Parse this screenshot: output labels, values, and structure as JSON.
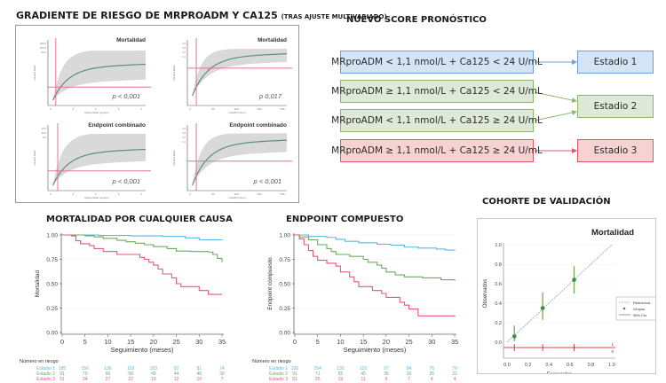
{
  "gradient": {
    "title": "GRADIENTE DE RIESGO DE MRPROADM Y CA125",
    "subtitle": "(TRAS AJUSTE MULTIVARIADO)",
    "panels": [
      {
        "title": "Mortalidad",
        "p": "p < 0,001",
        "ylabel": "Hazard Ratio",
        "xlabel": "MRproADM (nmol/L)",
        "yticks": [
          "150.0",
          "100.0",
          "50.0"
        ],
        "xticks": [
          "0",
          "1",
          "2",
          "3",
          "4"
        ]
      },
      {
        "title": "Mortalidad",
        "p": "p  0,017",
        "ylabel": "Hazard Ratio",
        "xlabel": "CA125 (U/mL)",
        "yticks": [
          "4.0",
          "3.0",
          "2.0",
          "1.0"
        ],
        "xticks": [
          "0",
          "50",
          "100",
          "150",
          "200"
        ]
      },
      {
        "title": "Endpoint combinado",
        "p": "p < 0,001",
        "ylabel": "Hazard Ratio",
        "xlabel": "MRproADM (nmol/L)",
        "yticks": [
          "15.0",
          "10.0",
          "5.0"
        ],
        "xticks": [
          "0",
          "1",
          "2",
          "3",
          "4"
        ]
      },
      {
        "title": "Endpoint combinado",
        "p": "p < 0,001",
        "ylabel": "Hazard Ratio",
        "xlabel": "CA125 (U/mL)",
        "yticks": [
          "4.0",
          "3.0",
          "2.0",
          "1.0"
        ],
        "xticks": [
          "0",
          "50",
          "100",
          "150",
          "200"
        ]
      }
    ]
  },
  "score": {
    "title": "NUEVO SCORE PRONÓSTICO",
    "conditions": [
      {
        "label": "MRproADM < 1,1 nmol/L + Ca125 < 24 U/mL",
        "stage": 0
      },
      {
        "label": "MRproADM ≥ 1,1 nmol/L + Ca125 < 24 U/mL",
        "stage": 1
      },
      {
        "label": "MRproADM < 1,1 nmol/L + Ca125 ≥ 24 U/mL",
        "stage": 1
      },
      {
        "label": "MRproADM ≥ 1,1 nmol/L + Ca125 ≥ 24 U/mL",
        "stage": 2
      }
    ],
    "stages": [
      "Estadio 1",
      "Estadio 2",
      "Estadio 3"
    ],
    "colors": {
      "blue": "#6ea0d6",
      "green": "#8cb66e",
      "red": "#dd5c64"
    }
  },
  "km_mortality": {
    "title": "MORTALIDAD POR CUALQUIER CAUSA",
    "ylabel": "Mortalidad",
    "xlabel": "Seguimiento (meses)",
    "risk_label": "Número en riesgo",
    "groups": [
      "Estadio 1",
      "Estadio 2",
      "Estadio 3"
    ],
    "at_risk": [
      [
        "195",
        "156",
        "136",
        "118",
        "103",
        "92",
        "81",
        "74"
      ],
      [
        "91",
        "79",
        "66",
        "58",
        "49",
        "44",
        "40",
        "30"
      ],
      [
        "51",
        "34",
        "27",
        "22",
        "19",
        "12",
        "10",
        "7"
      ]
    ]
  },
  "km_endpoint": {
    "title": "ENDPOINT COMPUESTO",
    "ylabel": "Endpoint compuesto",
    "xlabel": "Seguimiento (meses)",
    "risk_label": "Número en riesgo",
    "groups": [
      "Estadio 1",
      "Estadio 2",
      "Estadio 3"
    ],
    "at_risk": [
      [
        "195",
        "154",
        "130",
        "110",
        "97",
        "84",
        "76",
        "70"
      ],
      [
        "91",
        "71",
        "55",
        "45",
        "36",
        "30",
        "26",
        "22"
      ],
      [
        "51",
        "26",
        "19",
        "11",
        "9",
        "7",
        "4",
        "4"
      ]
    ]
  },
  "validation": {
    "title": "COHORTE DE VALIDACIÓN",
    "plot_title": "Mortalidad",
    "xlabel": "Esperados",
    "ylabel": "Observados",
    "legend": [
      "Referencia",
      "Grupos",
      "95% CIs"
    ],
    "rug_labels": [
      "1",
      "0"
    ]
  },
  "chart_data": [
    {
      "type": "line",
      "title": "MORTALIDAD POR CUALQUIER CAUSA",
      "xlabel": "Seguimiento (meses)",
      "ylabel": "Mortalidad",
      "xlim": [
        0,
        35
      ],
      "ylim": [
        0,
        1
      ],
      "xticks": [
        "0",
        "5",
        "10",
        "15",
        "20",
        "25",
        "30",
        "35"
      ],
      "yticks": [
        "0.00",
        "0.25",
        "0.50",
        "0.75",
        "1.00"
      ],
      "series": [
        {
          "name": "Estadio 1",
          "color": "#5bb8e0",
          "points": [
            [
              0,
              1.0
            ],
            [
              8,
              0.995
            ],
            [
              15,
              0.99
            ],
            [
              22,
              0.985
            ],
            [
              27,
              0.97
            ],
            [
              30,
              0.95
            ],
            [
              35,
              0.945
            ]
          ]
        },
        {
          "name": "Estadio 2",
          "color": "#6aad5a",
          "points": [
            [
              0,
              1.0
            ],
            [
              5,
              0.99
            ],
            [
              7,
              0.98
            ],
            [
              9,
              0.965
            ],
            [
              12,
              0.945
            ],
            [
              14,
              0.93
            ],
            [
              16,
              0.915
            ],
            [
              18,
              0.9
            ],
            [
              20,
              0.88
            ],
            [
              23,
              0.86
            ],
            [
              25,
              0.835
            ],
            [
              28,
              0.83
            ],
            [
              32,
              0.825
            ],
            [
              33,
              0.8
            ],
            [
              34,
              0.76
            ],
            [
              35,
              0.72
            ]
          ]
        },
        {
          "name": "Estadio 3",
          "color": "#e05a7a",
          "points": [
            [
              0,
              1.0
            ],
            [
              2,
              0.99
            ],
            [
              3,
              0.94
            ],
            [
              4,
              0.91
            ],
            [
              6,
              0.89
            ],
            [
              7,
              0.86
            ],
            [
              9,
              0.83
            ],
            [
              12,
              0.8
            ],
            [
              17,
              0.77
            ],
            [
              18,
              0.75
            ],
            [
              19,
              0.72
            ],
            [
              20,
              0.69
            ],
            [
              21,
              0.65
            ],
            [
              22,
              0.6
            ],
            [
              24,
              0.56
            ],
            [
              25,
              0.5
            ],
            [
              26,
              0.47
            ],
            [
              30,
              0.43
            ],
            [
              32,
              0.39
            ],
            [
              35,
              0.39
            ]
          ]
        }
      ]
    },
    {
      "type": "line",
      "title": "ENDPOINT COMPUESTO",
      "xlabel": "Seguimiento (meses)",
      "ylabel": "Endpoint compuesto",
      "xlim": [
        0,
        35
      ],
      "ylim": [
        0,
        1
      ],
      "xticks": [
        "0",
        "5",
        "10",
        "15",
        "20",
        "25",
        "30",
        "35"
      ],
      "yticks": [
        "0.00",
        "0.25",
        "0.50",
        "0.75",
        "1.00"
      ],
      "series": [
        {
          "name": "Estadio 1",
          "color": "#5bb8e0",
          "points": [
            [
              0,
              1.0
            ],
            [
              3,
              0.985
            ],
            [
              7,
              0.975
            ],
            [
              9,
              0.955
            ],
            [
              11,
              0.935
            ],
            [
              14,
              0.92
            ],
            [
              18,
              0.905
            ],
            [
              21,
              0.895
            ],
            [
              24,
              0.875
            ],
            [
              27,
              0.865
            ],
            [
              31,
              0.855
            ],
            [
              33,
              0.845
            ],
            [
              35,
              0.84
            ]
          ]
        },
        {
          "name": "Estadio 2",
          "color": "#6aad5a",
          "points": [
            [
              0,
              1.0
            ],
            [
              1,
              0.98
            ],
            [
              3,
              0.95
            ],
            [
              5,
              0.9
            ],
            [
              7,
              0.86
            ],
            [
              8,
              0.83
            ],
            [
              9,
              0.8
            ],
            [
              12,
              0.78
            ],
            [
              15,
              0.75
            ],
            [
              16,
              0.72
            ],
            [
              18,
              0.69
            ],
            [
              19,
              0.66
            ],
            [
              20,
              0.62
            ],
            [
              22,
              0.59
            ],
            [
              24,
              0.57
            ],
            [
              28,
              0.56
            ],
            [
              32,
              0.54
            ],
            [
              35,
              0.53
            ]
          ]
        },
        {
          "name": "Estadio 3",
          "color": "#e05a7a",
          "points": [
            [
              0,
              1.0
            ],
            [
              1,
              0.96
            ],
            [
              2,
              0.9
            ],
            [
              3,
              0.84
            ],
            [
              4,
              0.78
            ],
            [
              5,
              0.74
            ],
            [
              7,
              0.71
            ],
            [
              9,
              0.68
            ],
            [
              10,
              0.62
            ],
            [
              12,
              0.57
            ],
            [
              13,
              0.52
            ],
            [
              14,
              0.47
            ],
            [
              17,
              0.43
            ],
            [
              19,
              0.4
            ],
            [
              20,
              0.36
            ],
            [
              23,
              0.31
            ],
            [
              24,
              0.28
            ],
            [
              25,
              0.24
            ],
            [
              27,
              0.17
            ],
            [
              35,
              0.16
            ]
          ]
        }
      ]
    },
    {
      "type": "scatter",
      "title": "Mortalidad",
      "xlabel": "Esperados",
      "ylabel": "Observados",
      "xlim": [
        0,
        1
      ],
      "ylim": [
        0,
        1
      ],
      "xticks": [
        "0.0",
        "0.2",
        "0.4",
        "0.6",
        "0.8",
        "1.0"
      ],
      "yticks": [
        "0.0",
        "0.2",
        "0.4",
        "0.6",
        "0.8",
        "1.0"
      ],
      "points": [
        {
          "x": 0.07,
          "y": 0.06,
          "ci": [
            0.01,
            0.17
          ]
        },
        {
          "x": 0.34,
          "y": 0.35,
          "ci": [
            0.23,
            0.51
          ]
        },
        {
          "x": 0.64,
          "y": 0.64,
          "ci": [
            0.5,
            0.78
          ]
        }
      ],
      "reference": [
        [
          0,
          0
        ],
        [
          1,
          1
        ]
      ],
      "rug_x": [
        0.07,
        0.34,
        0.64
      ]
    }
  ]
}
